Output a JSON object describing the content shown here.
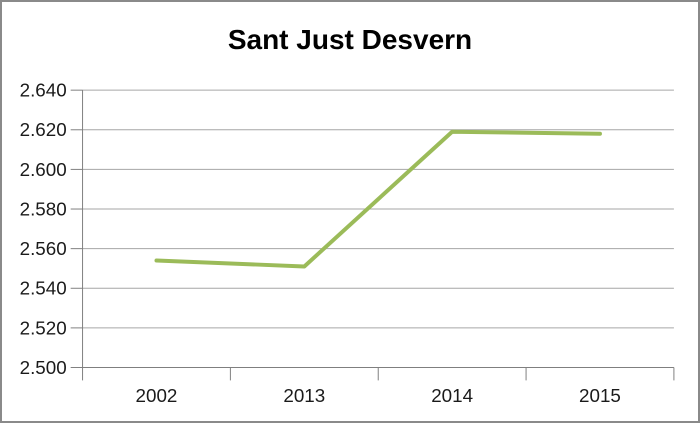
{
  "frame": {
    "background": "#ffffff",
    "border_color": "#8a8a8a"
  },
  "chart_data": {
    "type": "line",
    "title": "Sant Just Desvern",
    "categories": [
      "2002",
      "2013",
      "2014",
      "2015"
    ],
    "series": [
      {
        "name": "Sant Just Desvern",
        "values": [
          2.554,
          2.551,
          2.619,
          2.618
        ]
      }
    ],
    "ylim": [
      2.5,
      2.64
    ],
    "ytick_step": 0.02,
    "ytick_labels": [
      "2.500",
      "2.520",
      "2.540",
      "2.560",
      "2.580",
      "2.600",
      "2.620",
      "2.640"
    ],
    "xlabel": "",
    "ylabel": "",
    "grid": true,
    "legend_position": "none",
    "colors": {
      "line": "#9bbb59",
      "gridline": "#a6a6a6",
      "axis": "#7f7f7f",
      "label_text": "#1a1a1a",
      "title_text": "#000000"
    }
  }
}
